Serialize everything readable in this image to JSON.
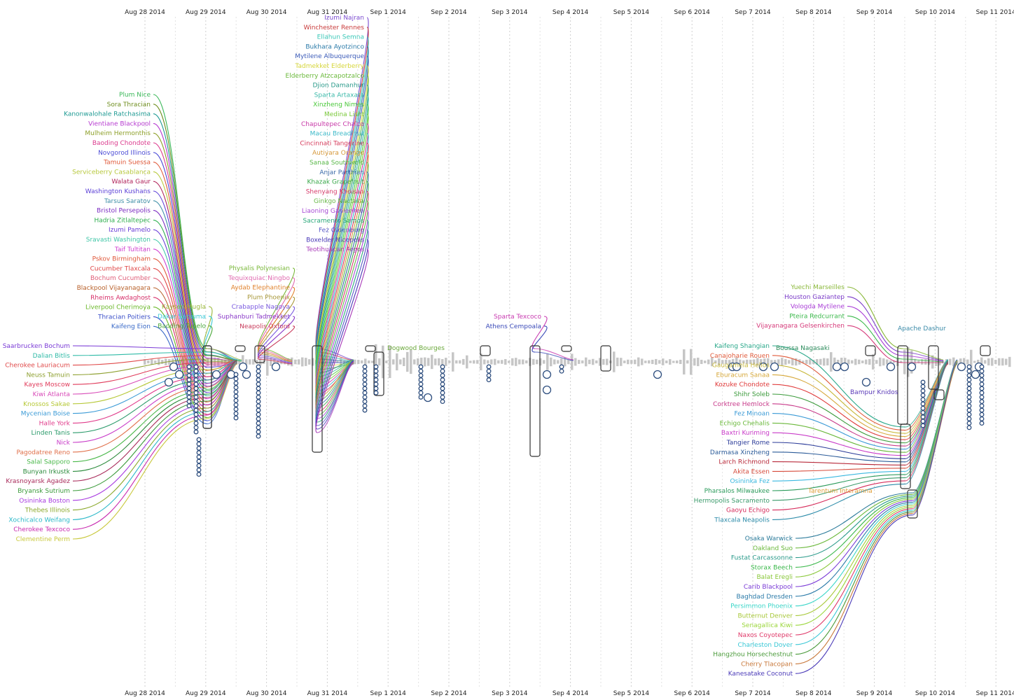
{
  "axis": {
    "dates": [
      "Aug 28 2014",
      "Aug 29 2014",
      "Aug 30 2014",
      "Aug 31 2014",
      "Sep 1 2014",
      "Sep 2 2014",
      "Sep 3 2014",
      "Sep 4 2014",
      "Sep 5 2014",
      "Sep 6 2014",
      "Sep 7 2014",
      "Sep 8 2014",
      "Sep 9 2014",
      "Sep 10 2014",
      "Sep 11 2014"
    ]
  },
  "groups": [
    {
      "id": "g1",
      "side": "left",
      "day": 0.0,
      "spread_day": 1.0,
      "target": "box-a",
      "entities": [
        {
          "name": "Plum Nice",
          "color": "#3cb85a"
        },
        {
          "name": "Sora Thracian",
          "color": "#6f8e1f"
        },
        {
          "name": "Kanonwalohale Ratchasima",
          "color": "#1e9a93"
        },
        {
          "name": "Vientiane Blackpool",
          "color": "#b63ad0"
        },
        {
          "name": "Mulheim Hermonthis",
          "color": "#8ea02a"
        },
        {
          "name": "Baoding Chondote",
          "color": "#dc3c8e"
        },
        {
          "name": "Novgorod Illinois",
          "color": "#4b4bd6"
        },
        {
          "name": "Tamuin Suessa",
          "color": "#e05a3a"
        },
        {
          "name": "Serviceberry Casablanca",
          "color": "#b7c83c"
        },
        {
          "name": "Walata Gaur",
          "color": "#b0245a"
        },
        {
          "name": "Washington Kushans",
          "color": "#5a3ed6"
        },
        {
          "name": "Tarsus Saratov",
          "color": "#3e8ea6"
        },
        {
          "name": "Bristol Persepolis",
          "color": "#7a2ac0"
        },
        {
          "name": "Hadria Zitlaltepec",
          "color": "#2eae4e"
        },
        {
          "name": "Izumi Pamelo",
          "color": "#6a3ed8"
        },
        {
          "name": "Sravasti Washington",
          "color": "#3ec6a6"
        },
        {
          "name": "Taif Tultitan",
          "color": "#d03ed0"
        },
        {
          "name": "Pskov Birmingham",
          "color": "#e0583a"
        },
        {
          "name": "Cucumber Tlaxcala",
          "color": "#e04848"
        },
        {
          "name": "Bochum Cucumber",
          "color": "#e0607a"
        },
        {
          "name": "Blackpool Vijayanagara",
          "color": "#b8602a"
        },
        {
          "name": "Rheims Awdaghost",
          "color": "#d6306a"
        },
        {
          "name": "Liverpool Cherimoya",
          "color": "#6ab82a"
        },
        {
          "name": "Thracian Poitiers",
          "color": "#3a4ec8"
        },
        {
          "name": "Kaifeng Eion",
          "color": "#3a6ac8"
        }
      ]
    },
    {
      "id": "g2",
      "side": "left",
      "day": 0.0,
      "spread_day": 2.0,
      "target": "box-b",
      "entities": [
        {
          "name": "Saarbrucken Bochum",
          "color": "#7a3ad6"
        },
        {
          "name": "Dalian Bitlis",
          "color": "#2ebaa6"
        },
        {
          "name": "Cherokee Lauriacum",
          "color": "#e04a4a"
        },
        {
          "name": "Neuss Tamuin",
          "color": "#8ea030"
        },
        {
          "name": "Kayes Moscow",
          "color": "#e03a5a"
        },
        {
          "name": "Kiwi Atlanta",
          "color": "#d84ab8"
        },
        {
          "name": "Knossos Sakae",
          "color": "#b6c836"
        },
        {
          "name": "Mycenian Boise",
          "color": "#3a9ad6"
        },
        {
          "name": "Halle York",
          "color": "#e03a8a"
        },
        {
          "name": "Linden Tanis",
          "color": "#2a9a6a"
        },
        {
          "name": "Nick",
          "color": "#c83ac8"
        },
        {
          "name": "Pagodatree Reno",
          "color": "#e0704a"
        },
        {
          "name": "Salal Sapporo",
          "color": "#4ab84a"
        },
        {
          "name": "Bunyan Irkustk",
          "color": "#2a8a3a"
        },
        {
          "name": "Krasnoyarsk Agadez",
          "color": "#a82a5a"
        },
        {
          "name": "Bryansk Sutrium",
          "color": "#3a9a3a"
        },
        {
          "name": "Osininka Boston",
          "color": "#a83ae0"
        },
        {
          "name": "Thebes Illinois",
          "color": "#8aa82a"
        },
        {
          "name": "Xochicalco Weifang",
          "color": "#2ab8c8"
        },
        {
          "name": "Cherokee Texcoco",
          "color": "#c82ab0"
        },
        {
          "name": "Clementine Perm",
          "color": "#c8c83a"
        }
      ]
    },
    {
      "id": "g3",
      "side": "left",
      "day": 2.0,
      "spread_day": 0.9,
      "target": "box-c",
      "entities": [
        {
          "name": "Physalis Polynesian",
          "color": "#7ab83a"
        },
        {
          "name": "Tequixquiac Ningbo",
          "color": "#e06ab0"
        },
        {
          "name": "Aydab Elephantine",
          "color": "#e0802a"
        },
        {
          "name": "Plum Phoenix",
          "color": "#a8983a"
        },
        {
          "name": "Crabapple Nagoya",
          "color": "#7a5ae0"
        },
        {
          "name": "Suphanburi Tadmekket",
          "color": "#8a3ac8"
        },
        {
          "name": "Neapolis Oxford",
          "color": "#c83a5a"
        }
      ]
    },
    {
      "id": "g4",
      "side": "left",
      "day": 1.3,
      "spread_day": 0.5,
      "target": "box-a",
      "entities": [
        {
          "name": "Kayseri Mugla",
          "color": "#9ab83a"
        },
        {
          "name": "Dakar Satsuma",
          "color": "#3ac8d6"
        },
        {
          "name": "Baoding Tupelo",
          "color": "#4aa83a"
        }
      ]
    },
    {
      "id": "g5",
      "side": "left",
      "day": 3.0,
      "spread_day": 2.5,
      "target": "box-d",
      "entities": [
        {
          "name": "Izumi Najran",
          "color": "#7a4ad0"
        },
        {
          "name": "Winchester Rennes",
          "color": "#c83a3a"
        },
        {
          "name": "Ellahun Semna",
          "color": "#3ac8b8"
        },
        {
          "name": "Bukhara Ayotzinco",
          "color": "#2a7aa8"
        },
        {
          "name": "Mytilene Albuquerque",
          "color": "#3a5ab8"
        },
        {
          "name": "Tadmekket Elderberry",
          "color": "#d6d63a"
        },
        {
          "name": "Elderberry Atzcapotzalco",
          "color": "#6ab83a"
        },
        {
          "name": "Djion Damanhur",
          "color": "#2a9a8a"
        },
        {
          "name": "Sparta Artaxata",
          "color": "#3ab8a8"
        },
        {
          "name": "Xinzheng Nimes",
          "color": "#4ac83a"
        },
        {
          "name": "Medina Lisht",
          "color": "#7ac83a"
        },
        {
          "name": "Chapultepec Chalco",
          "color": "#c83aa8"
        },
        {
          "name": "Macau Breadfruit",
          "color": "#3ab8c8"
        },
        {
          "name": "Cincinnati Tangerine",
          "color": "#d63a5a"
        },
        {
          "name": "Autiyara Orange",
          "color": "#d6983a"
        },
        {
          "name": "Sanaa Southwold",
          "color": "#5ab84a"
        },
        {
          "name": "Anjar Parthian",
          "color": "#3a6aa8"
        },
        {
          "name": "Khazak Grapefruit",
          "color": "#3aa84a"
        },
        {
          "name": "Shenyang Khoisan",
          "color": "#d63a6a"
        },
        {
          "name": "Ginkgo Nautaka",
          "color": "#6ab84a"
        },
        {
          "name": "Liaoning Ganienkeh",
          "color": "#a84ad6"
        },
        {
          "name": "Sacramento Samos",
          "color": "#2aa87a"
        },
        {
          "name": "Fez Oldenburg",
          "color": "#5a5ac8"
        },
        {
          "name": "Boxelder Nicopolis",
          "color": "#4a3ab8"
        },
        {
          "name": "Teotihuacan Argos",
          "color": "#a83ab8"
        }
      ]
    },
    {
      "id": "g6",
      "side": "left",
      "day": 6.1,
      "spread_day": 0.5,
      "target": "box-e",
      "entities": [
        {
          "name": "Sparta Texcoco",
          "color": "#c83ab0"
        },
        {
          "name": "Athens Cempoala",
          "color": "#3a4ab8"
        }
      ]
    },
    {
      "id": "g7",
      "side": "left",
      "day": 9.9,
      "spread_day": 1.2,
      "target": "box-f",
      "entities": [
        {
          "name": "Yuechi Marseilles",
          "color": "#8ab83a"
        },
        {
          "name": "Houston Gaziantep",
          "color": "#7a3ac8"
        },
        {
          "name": "Vologda Mytilene",
          "color": "#a83ad6"
        },
        {
          "name": "Pteira Redcurrant",
          "color": "#3ab84a"
        },
        {
          "name": "Vijayanagara Gelsenkirchen",
          "color": "#d63a7a"
        }
      ]
    },
    {
      "id": "g8",
      "side": "left",
      "day": 7.7,
      "spread_day": 1.2,
      "target": "box-g",
      "entities": [
        {
          "name": "Kaifeng Shangian",
          "color": "#2aa88a"
        },
        {
          "name": "Canajoharie Rouen",
          "color": "#e05a3a"
        },
        {
          "name": "Gaugamela Helios",
          "color": "#c8b83a"
        },
        {
          "name": "Eburacum Sanaa",
          "color": "#d6a83a"
        },
        {
          "name": "Kozuke Chondote",
          "color": "#e03a3a"
        },
        {
          "name": "Shihr Soleb",
          "color": "#3a9a3a"
        },
        {
          "name": "Corktree Hemlock",
          "color": "#c83a8a"
        },
        {
          "name": "Fez Minoan",
          "color": "#3a9ad6"
        },
        {
          "name": "Echigo Chehalis",
          "color": "#6ab83a"
        },
        {
          "name": "Baxtri Kunming",
          "color": "#c83ac8"
        },
        {
          "name": "Tangier Rome",
          "color": "#2a3a98"
        },
        {
          "name": "Darmasa Xinzheng",
          "color": "#2a5a98"
        },
        {
          "name": "Larch Richmond",
          "color": "#b82a3a"
        },
        {
          "name": "Akita Essen",
          "color": "#d64a3a"
        },
        {
          "name": "Osininka Fez",
          "color": "#3ab8e0"
        },
        {
          "name": "Pharsalos Milwaukee",
          "color": "#2a9a5a"
        },
        {
          "name": "Hermopolis Sacramento",
          "color": "#3a9a6a"
        },
        {
          "name": "Gaoyu Echigo",
          "color": "#d62a5a"
        },
        {
          "name": "Tlaxcala Neapolis",
          "color": "#2a8aa8"
        }
      ]
    },
    {
      "id": "g9",
      "side": "left",
      "day": 8.7,
      "spread_day": 1.2,
      "target": "box-h",
      "entities": [
        {
          "name": "Osaka Warwick",
          "color": "#2a7a9a"
        },
        {
          "name": "Oakland Suo",
          "color": "#6ab83a"
        },
        {
          "name": "Fustat Carcassonne",
          "color": "#2a9a8a"
        },
        {
          "name": "Storax Beech",
          "color": "#3ab84a"
        },
        {
          "name": "Balat Eregli",
          "color": "#8ac83a"
        },
        {
          "name": "Carib Blackpool",
          "color": "#7a3ad6"
        },
        {
          "name": "Baghdad Dresden",
          "color": "#2a7aa8"
        },
        {
          "name": "Persimmon Phoenix",
          "color": "#3ad6c8"
        },
        {
          "name": "Butternut Denver",
          "color": "#a8c83a"
        },
        {
          "name": "Senagallica Kiwi",
          "color": "#9ad63a"
        },
        {
          "name": "Naxos Coyotepec",
          "color": "#e03a6a"
        },
        {
          "name": "Charleston Dover",
          "color": "#3ac8d6"
        },
        {
          "name": "Hangzhou Horsechestnut",
          "color": "#4a9a3a"
        },
        {
          "name": "Cherry Tlacopan",
          "color": "#c8783a"
        },
        {
          "name": "Kanesatake Coconut",
          "color": "#4a3ab8"
        }
      ]
    }
  ],
  "floating_labels": [
    {
      "name": "Dogwood Bourges",
      "color": "#6aa83a"
    },
    {
      "name": "Boussa Nagasaki",
      "color": "#2a8a5a"
    },
    {
      "name": "Apache Dashur",
      "color": "#3a8aa8"
    },
    {
      "name": "Bampur Knidos",
      "color": "#5a3ab8"
    },
    {
      "name": "Tarentum Interamna",
      "color": "#e0a03a"
    }
  ]
}
